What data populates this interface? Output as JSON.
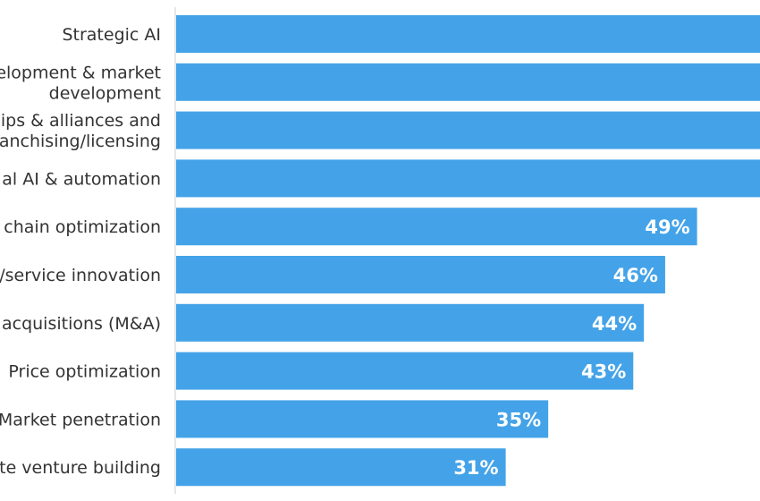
{
  "chart_data": {
    "type": "bar",
    "orientation": "horizontal",
    "categories": [
      [
        "Strategic AI"
      ],
      [
        "elopment & market",
        "development"
      ],
      [
        "hips & alliances and",
        "anchising/licensing"
      ],
      [
        "al AI & automation"
      ],
      [
        "chain optimization"
      ],
      [
        "/service innovation"
      ],
      [
        "acquisitions (M&A)"
      ],
      [
        "Price optimization"
      ],
      [
        "Market penetration"
      ],
      [
        "te venture building"
      ]
    ],
    "values": [
      null,
      null,
      null,
      null,
      49,
      46,
      44,
      43,
      35,
      31
    ],
    "value_labels": [
      "",
      "",
      "",
      "",
      "49%",
      "46%",
      "44%",
      "43%",
      "35%",
      "31%"
    ],
    "xlim": [
      0,
      100
    ],
    "grid": false,
    "colors": {
      "bar": "#44a3e8",
      "label": "#333333",
      "value_label": "#ffffff",
      "axis": "#dddddd"
    }
  }
}
